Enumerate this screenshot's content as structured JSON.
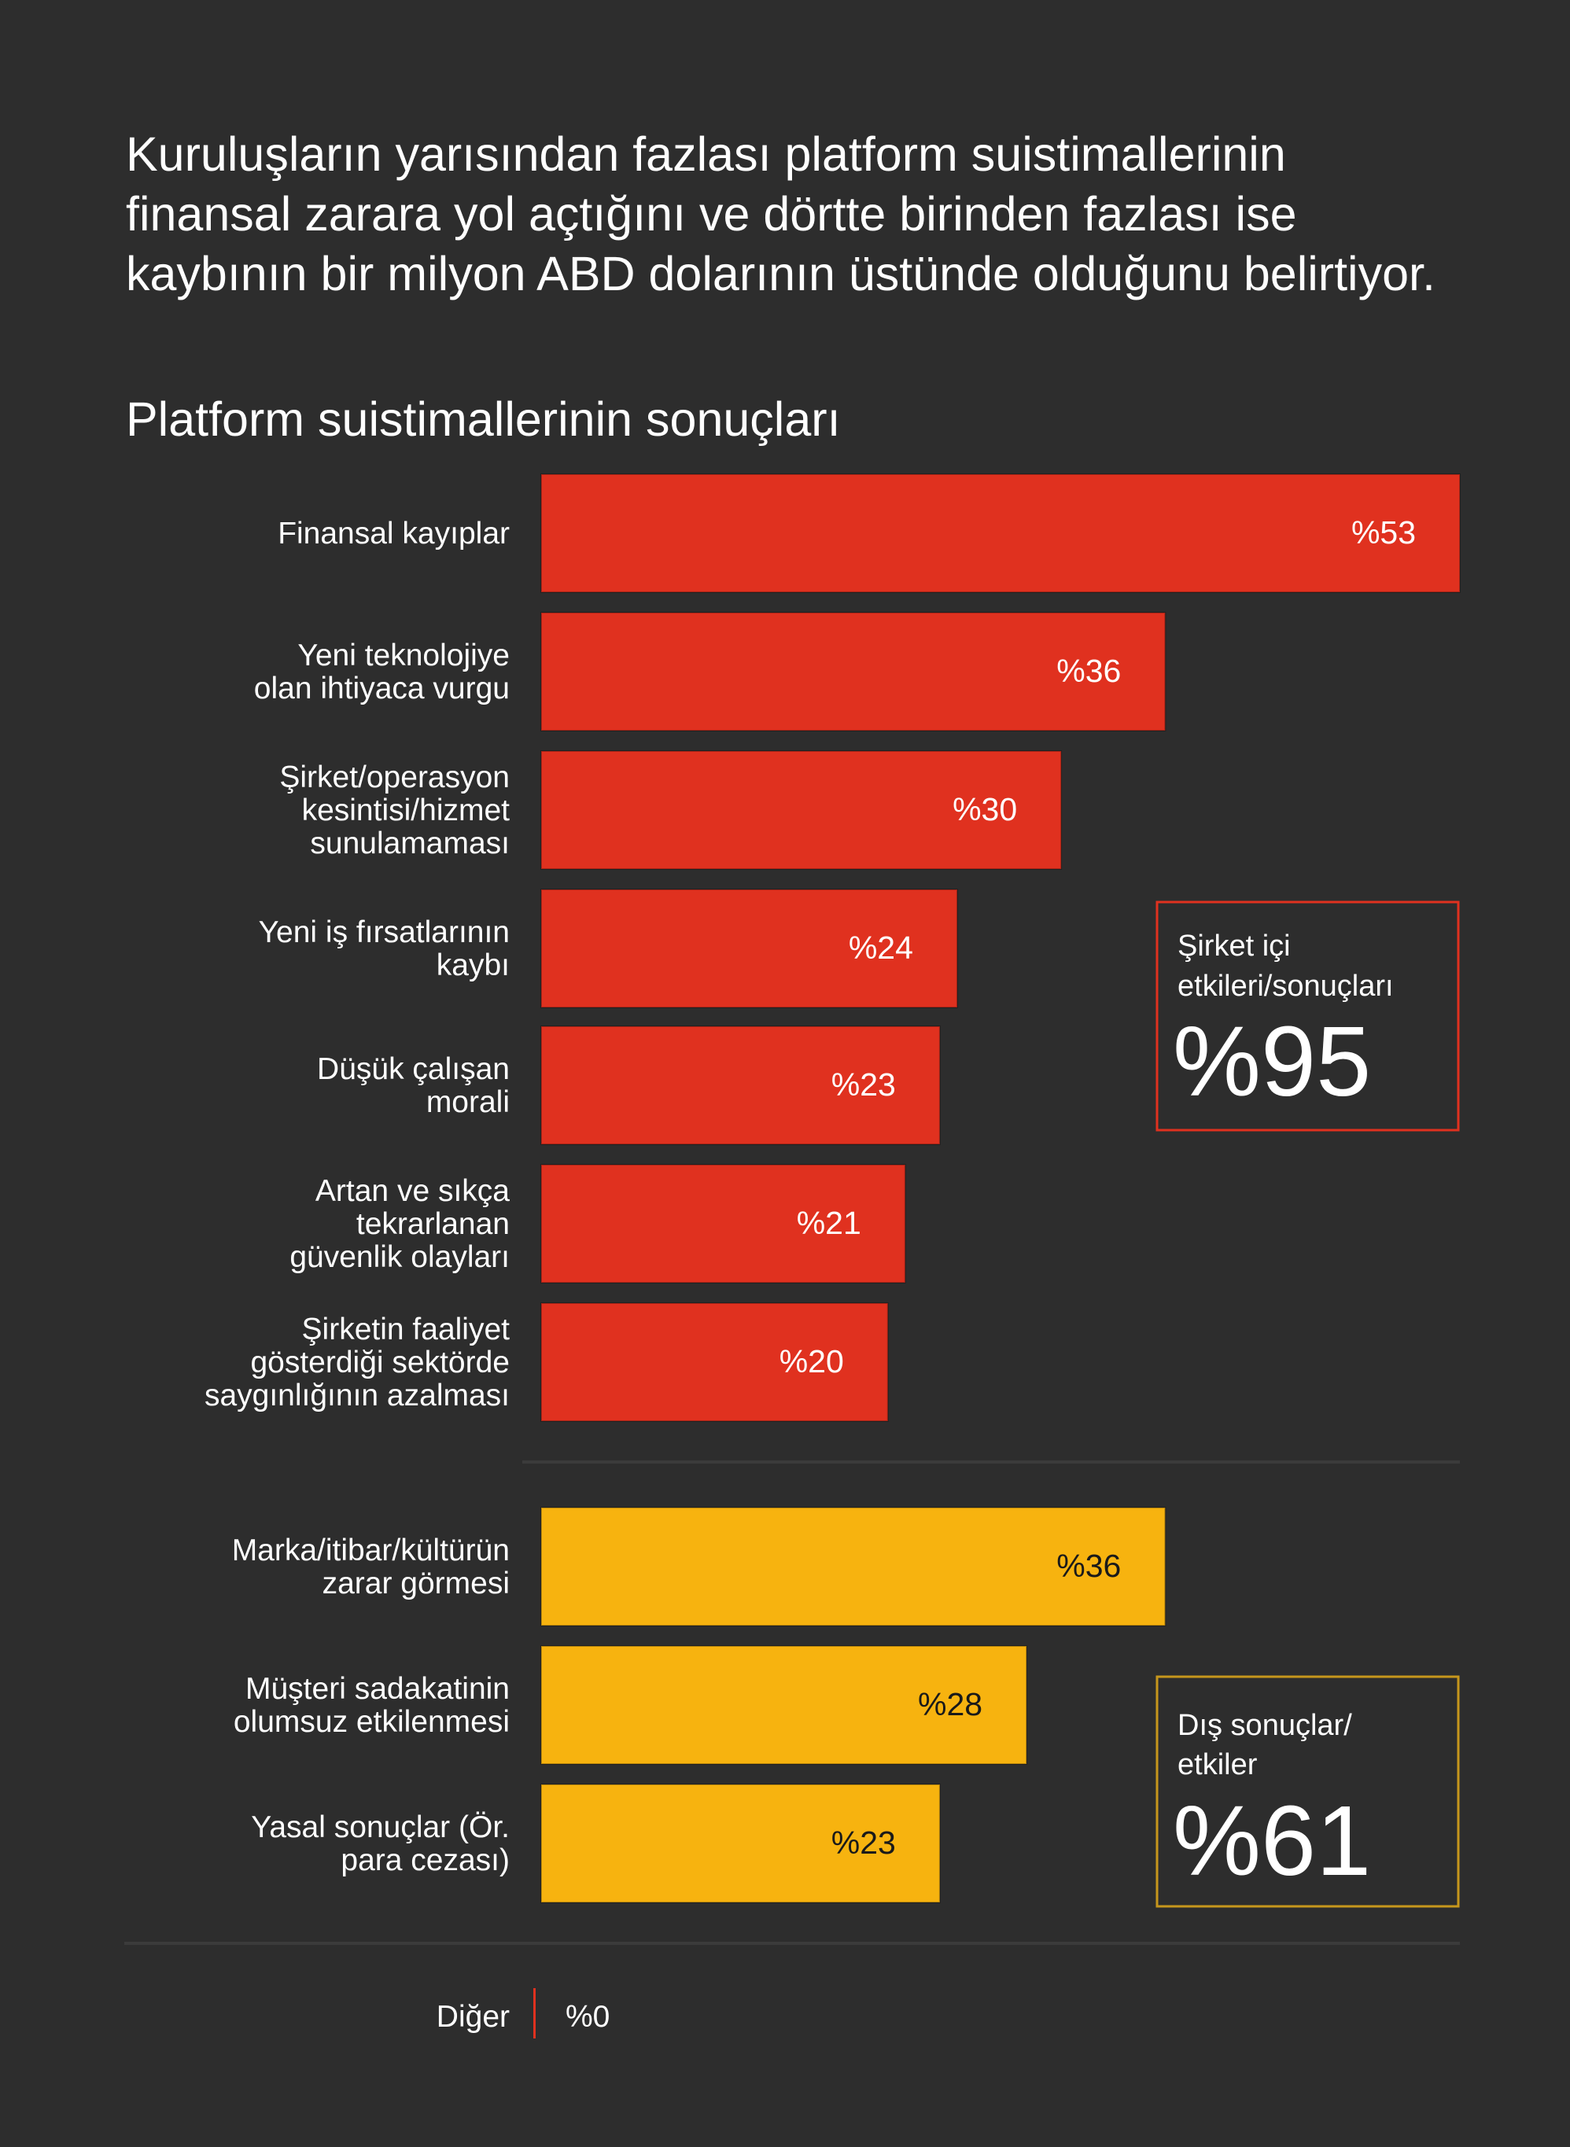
{
  "headline": [
    "Kuruluşların yarısından fazlası platform suistimallerinin",
    "finansal zarara yol açtığını ve dörtte birinden fazlası ise",
    "kaybının bir milyon ABD dolarının üstünde olduğunu belirtiyor."
  ],
  "chart_data": {
    "type": "bar",
    "orientation": "horizontal",
    "title": "Platform suistimallerinin sonuçları",
    "value_prefix": "%",
    "xlim": [
      0,
      53
    ],
    "groups": [
      {
        "name": "Şirket içi etkileri/sonuçları",
        "color": "#e0311f",
        "label_color": "#ffffff",
        "total_label": [
          "Şirket içi",
          "etkileri/sonuçları"
        ],
        "total_value": "%95",
        "categories": [
          [
            "Finansal kayıplar"
          ],
          [
            "Yeni teknolojiye",
            "olan ihtiyaca vurgu"
          ],
          [
            "Şirket/operasyon",
            "kesintisi/hizmet",
            "sunulamaması"
          ],
          [
            "Yeni iş fırsatlarının",
            "kaybı"
          ],
          [
            "Düşük çalışan",
            "morali"
          ],
          [
            "Artan ve sıkça",
            "tekrarlanan",
            "güvenlik olayları"
          ],
          [
            "Şirketin faaliyet",
            "gösterdiği sektörde",
            "saygınlığının azalması"
          ]
        ],
        "values": [
          53,
          36,
          30,
          24,
          23,
          21,
          20
        ],
        "highlight_index": 0,
        "highlight_color": "#e0311f"
      },
      {
        "name": "Dış sonuçlar/etkiler",
        "color": "#f7b30f",
        "label_color": "#1a1a1a",
        "total_label": [
          "Dış sonuçlar/",
          "etkiler"
        ],
        "total_value": "%61",
        "categories": [
          [
            "Marka/itibar/kültürün",
            "zarar görmesi"
          ],
          [
            "Müşteri sadakatinin",
            "olumsuz etkilenmesi"
          ],
          [
            "Yasal sonuçlar (Ör.",
            "para cezası)"
          ]
        ],
        "values": [
          36,
          28,
          23
        ]
      }
    ],
    "other": {
      "label": "Diğer",
      "value": 0,
      "value_label": "%0"
    }
  }
}
